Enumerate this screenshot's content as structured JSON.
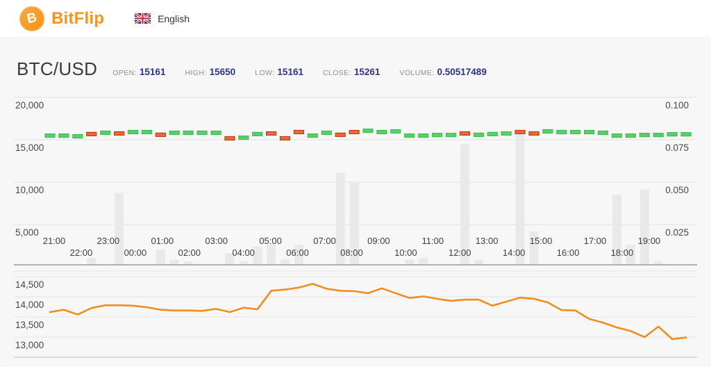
{
  "header": {
    "brand": "BitFlip",
    "language": "English"
  },
  "stats": {
    "pair": "BTC/USD",
    "items": [
      {
        "label": "OPEN:",
        "value": "15161"
      },
      {
        "label": "HIGH:",
        "value": "15650"
      },
      {
        "label": "LOW:",
        "value": "15161"
      },
      {
        "label": "CLOSE:",
        "value": "15261"
      },
      {
        "label": "VOLUME:",
        "value": "0.50517489"
      }
    ]
  },
  "colors": {
    "accent_orange": "#f7941d",
    "value_navy": "#2f3383",
    "up_fill": "#58d069",
    "up_border": "#43bb52",
    "down_fill": "#ea6a40",
    "down_border": "#c63c12",
    "line_orange": "#ef8d1f",
    "volume_bar": "#e9e9e9",
    "gridline": "#e3e3e3"
  },
  "chart_data": [
    {
      "type": "candlestick",
      "title": "BTC/USD price and volume",
      "interval": "30min",
      "x_ticks": [
        "21:00",
        "22:00",
        "23:00",
        "00:00",
        "01:00",
        "02:00",
        "03:00",
        "04:00",
        "05:00",
        "06:00",
        "07:00",
        "08:00",
        "09:00",
        "10:00",
        "11:00",
        "12:00",
        "13:00",
        "14:00",
        "15:00",
        "16:00",
        "17:00",
        "18:00",
        "19:00"
      ],
      "left_axis": {
        "title": "price",
        "values": [
          20000,
          15000,
          10000,
          5000
        ],
        "tick_labels": [
          "20,000",
          "15,000",
          "10,000",
          "5,000"
        ],
        "min": 0
      },
      "right_axis": {
        "title": "volume",
        "values": [
          0.1,
          0.075,
          0.05,
          0.025
        ],
        "tick_labels": [
          "0.100",
          "0.075",
          "0.050",
          "0.025"
        ],
        "min": 0
      },
      "candles": [
        {
          "d": "up",
          "p": 15480,
          "v": 0
        },
        {
          "d": "up",
          "p": 15480,
          "v": 0
        },
        {
          "d": "up",
          "p": 15400,
          "v": 0
        },
        {
          "d": "down",
          "p": 15660,
          "v": 0.004
        },
        {
          "d": "up",
          "p": 15820,
          "v": 0
        },
        {
          "d": "down",
          "p": 15740,
          "v": 0.043
        },
        {
          "d": "up",
          "p": 15900,
          "v": 0
        },
        {
          "d": "up",
          "p": 15900,
          "v": 0
        },
        {
          "d": "down",
          "p": 15580,
          "v": 0.009
        },
        {
          "d": "up",
          "p": 15820,
          "v": 0.003
        },
        {
          "d": "up",
          "p": 15820,
          "v": 0.002
        },
        {
          "d": "up",
          "p": 15820,
          "v": 0
        },
        {
          "d": "up",
          "p": 15820,
          "v": 0
        },
        {
          "d": "down",
          "p": 15160,
          "v": 0.007
        },
        {
          "d": "up",
          "p": 15240,
          "v": 0.002
        },
        {
          "d": "up",
          "p": 15660,
          "v": 0.011
        },
        {
          "d": "down",
          "p": 15740,
          "v": 0.012
        },
        {
          "d": "down",
          "p": 15160,
          "v": 0.003
        },
        {
          "d": "down",
          "p": 15900,
          "v": 0.012
        },
        {
          "d": "up",
          "p": 15480,
          "v": 0
        },
        {
          "d": "up",
          "p": 15820,
          "v": 0
        },
        {
          "d": "down",
          "p": 15580,
          "v": 0.055
        },
        {
          "d": "down",
          "p": 15900,
          "v": 0.049
        },
        {
          "d": "up",
          "p": 16060,
          "v": 0
        },
        {
          "d": "up",
          "p": 15900,
          "v": 0
        },
        {
          "d": "up",
          "p": 15980,
          "v": 0
        },
        {
          "d": "up",
          "p": 15480,
          "v": 0.003
        },
        {
          "d": "up",
          "p": 15480,
          "v": 0.004
        },
        {
          "d": "up",
          "p": 15560,
          "v": 0
        },
        {
          "d": "up",
          "p": 15560,
          "v": 0
        },
        {
          "d": "down",
          "p": 15740,
          "v": 0.072
        },
        {
          "d": "up",
          "p": 15580,
          "v": 0.003
        },
        {
          "d": "up",
          "p": 15660,
          "v": 0
        },
        {
          "d": "up",
          "p": 15740,
          "v": 0
        },
        {
          "d": "down",
          "p": 15900,
          "v": 0.078
        },
        {
          "d": "down",
          "p": 15740,
          "v": 0.02
        },
        {
          "d": "up",
          "p": 15980,
          "v": 0
        },
        {
          "d": "up",
          "p": 15900,
          "v": 0
        },
        {
          "d": "up",
          "p": 15900,
          "v": 0
        },
        {
          "d": "up",
          "p": 15900,
          "v": 0
        },
        {
          "d": "up",
          "p": 15820,
          "v": 0
        },
        {
          "d": "up",
          "p": 15480,
          "v": 0.042
        },
        {
          "d": "up",
          "p": 15480,
          "v": 0.012
        },
        {
          "d": "up",
          "p": 15560,
          "v": 0.045
        },
        {
          "d": "up",
          "p": 15560,
          "v": 0.002
        },
        {
          "d": "up",
          "p": 15640,
          "v": 0
        },
        {
          "d": "up",
          "p": 15640,
          "v": 0
        }
      ]
    },
    {
      "type": "line",
      "title": "BTC/USD close price line",
      "y_axis": {
        "values": [
          14500,
          14000,
          13500,
          13000
        ],
        "tick_labels": [
          "14,500",
          "14,000",
          "13,500",
          "13,000"
        ]
      },
      "values": [
        13620,
        13680,
        13560,
        13720,
        13790,
        13790,
        13780,
        13740,
        13680,
        13660,
        13660,
        13650,
        13700,
        13620,
        13730,
        13690,
        14150,
        14180,
        14230,
        14320,
        14200,
        14150,
        14140,
        14090,
        14210,
        14090,
        13970,
        14010,
        13950,
        13900,
        13930,
        13930,
        13780,
        13880,
        13980,
        13950,
        13860,
        13670,
        13660,
        13450,
        13360,
        13240,
        13150,
        13000,
        13260,
        12950,
        12990
      ]
    }
  ]
}
